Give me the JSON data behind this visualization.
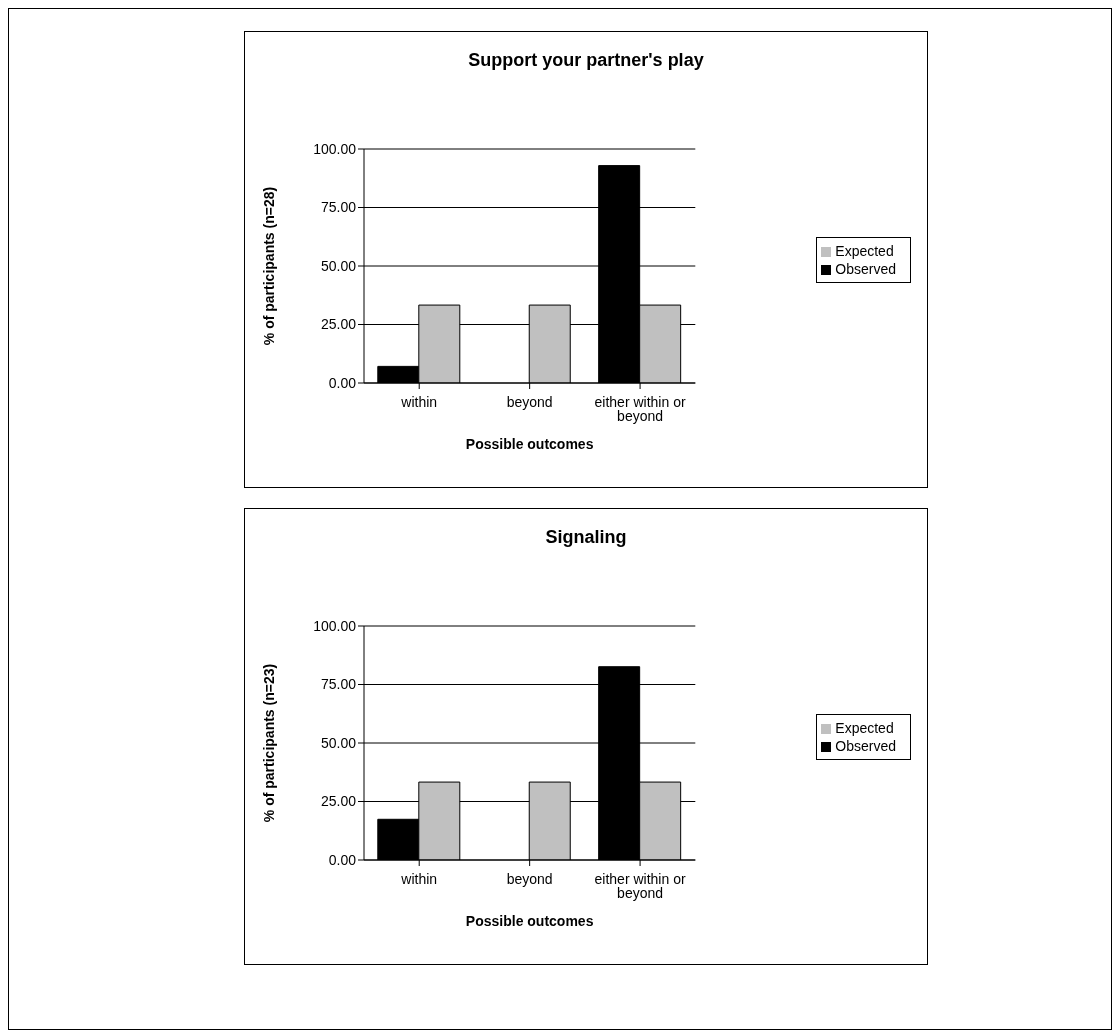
{
  "chart_data": [
    {
      "type": "bar",
      "title": "Support your partner's play",
      "xlabel": "Possible outcomes",
      "ylabel": "% of participants (n=28)",
      "categories": [
        "within",
        "beyond",
        "either within or beyond"
      ],
      "series": [
        {
          "name": "Observed",
          "color": "#000000",
          "values": [
            7.1,
            0,
            92.9
          ]
        },
        {
          "name": "Expected",
          "color": "#c0c0c0",
          "values": [
            33.3,
            33.3,
            33.3
          ]
        }
      ],
      "ylim": [
        0,
        100
      ],
      "yticks": [
        {
          "value": 0,
          "label": "0.00"
        },
        {
          "value": 25,
          "label": "25.00"
        },
        {
          "value": 50,
          "label": "50.00"
        },
        {
          "value": 75,
          "label": "75.00"
        },
        {
          "value": 100,
          "label": "100.00"
        }
      ],
      "grid": "y",
      "legend": "right"
    },
    {
      "type": "bar",
      "title": "Signaling",
      "xlabel": "Possible outcomes",
      "ylabel": "% of participants (n=23)",
      "categories": [
        "within",
        "beyond",
        "either within or beyond"
      ],
      "series": [
        {
          "name": "Observed",
          "color": "#000000",
          "values": [
            17.4,
            0,
            82.6
          ]
        },
        {
          "name": "Expected",
          "color": "#c0c0c0",
          "values": [
            33.3,
            33.3,
            33.3
          ]
        }
      ],
      "ylim": [
        0,
        100
      ],
      "yticks": [
        {
          "value": 0,
          "label": "0.00"
        },
        {
          "value": 25,
          "label": "25.00"
        },
        {
          "value": 50,
          "label": "50.00"
        },
        {
          "value": 75,
          "label": "75.00"
        },
        {
          "value": 100,
          "label": "100.00"
        }
      ],
      "grid": "y",
      "legend": "right"
    }
  ]
}
